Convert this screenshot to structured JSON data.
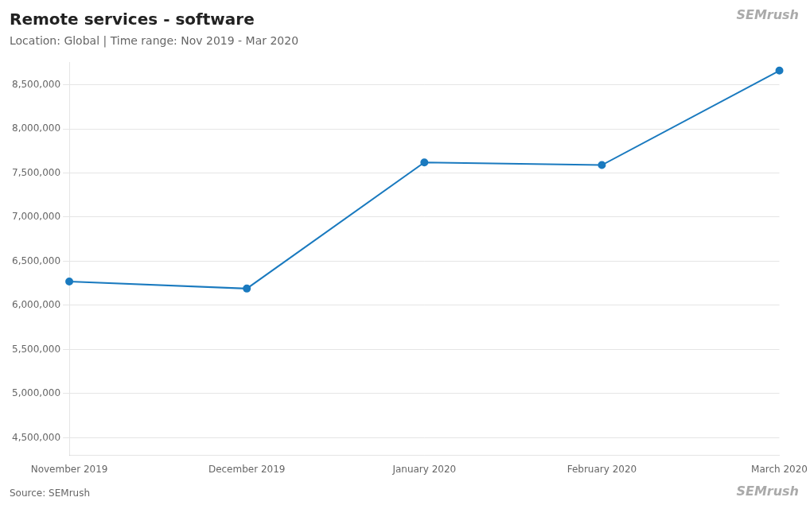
{
  "chart_data": {
    "type": "line",
    "title": "Remote services - software",
    "subtitle": "Location: Global | Time range: Nov 2019 - Mar 2020",
    "annotations": [
      "Source: SEMrush",
      "SEMrush",
      "SEMrush"
    ],
    "categories": [
      "November 2019",
      "December 2019",
      "January 2020",
      "February 2020",
      "March 2020"
    ],
    "values": [
      6270000,
      6190000,
      7620000,
      7590000,
      8660000
    ],
    "color": "#1a7abf",
    "marker": "circle",
    "ylim": [
      4300000,
      8750000
    ],
    "yticks": [
      {
        "value": 4500000,
        "label": "4,500,000"
      },
      {
        "value": 5000000,
        "label": "5,000,000"
      },
      {
        "value": 5500000,
        "label": "5,500,000"
      },
      {
        "value": 6000000,
        "label": "6,000,000"
      },
      {
        "value": 6500000,
        "label": "6,500,000"
      },
      {
        "value": 7000000,
        "label": "7,000,000"
      },
      {
        "value": 7500000,
        "label": "7,500,000"
      },
      {
        "value": 8000000,
        "label": "8,000,000"
      },
      {
        "value": 8500000,
        "label": "8,500,000"
      }
    ],
    "grid": true
  }
}
